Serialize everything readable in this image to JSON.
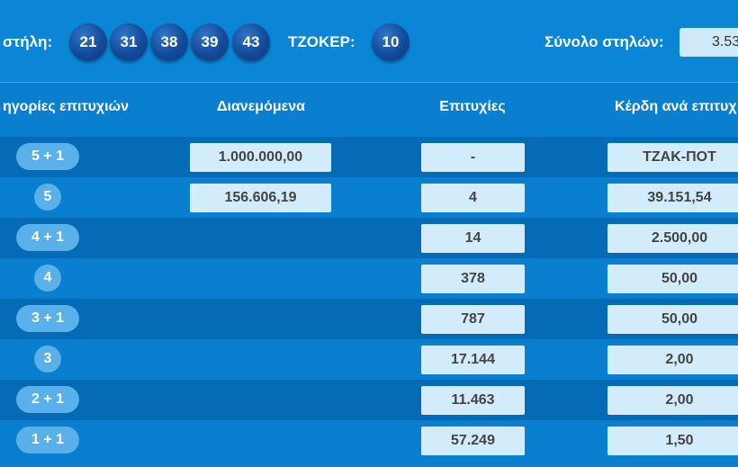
{
  "header": {
    "column_label": "στήλη:",
    "numbers": [
      "21",
      "31",
      "38",
      "39",
      "43"
    ],
    "joker_label": "ΤΖΟΚΕΡ:",
    "joker_number": "10",
    "total_columns_label": "Σύνολο στηλών:",
    "total_columns_value": "3.53"
  },
  "table": {
    "headers": [
      "ηγορίες επιτυχιών",
      "Διανεμόμενα",
      "Επιτυχίες",
      "Κέρδη ανά επιτυχ"
    ],
    "rows": [
      {
        "category": "5 + 1",
        "distributed": "1.000.000,00",
        "winners": "-",
        "prize": "ΤΖΑΚ-ΠΟΤ"
      },
      {
        "category": "5",
        "distributed": "156.606,19",
        "winners": "4",
        "prize": "39.151,54"
      },
      {
        "category": "4 + 1",
        "distributed": "",
        "winners": "14",
        "prize": "2.500,00"
      },
      {
        "category": "4",
        "distributed": "",
        "winners": "378",
        "prize": "50,00"
      },
      {
        "category": "3 + 1",
        "distributed": "",
        "winners": "787",
        "prize": "50,00"
      },
      {
        "category": "3",
        "distributed": "",
        "winners": "17.144",
        "prize": "2,00"
      },
      {
        "category": "2 + 1",
        "distributed": "",
        "winners": "11.463",
        "prize": "2,00"
      },
      {
        "category": "1 + 1",
        "distributed": "",
        "winners": "57.249",
        "prize": "1,50"
      }
    ]
  }
}
